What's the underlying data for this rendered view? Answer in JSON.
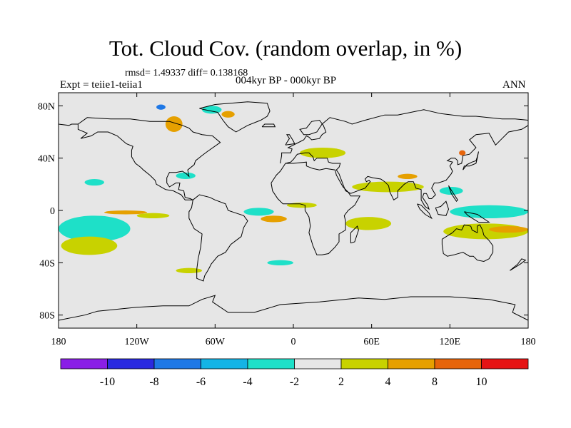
{
  "header": {
    "title": "Tot. Cloud Cov. (random overlap, in %)",
    "stats": "rmsd= 1.49337 diff= 0.138168",
    "experiment": "Expt = teiie1-teiia1",
    "period": "004kyr BP - 000kyr BP",
    "season": "ANN"
  },
  "chart_data": {
    "type": "heatmap",
    "title": "Tot. Cloud Cov. (random overlap, in %)",
    "projection": "cylindrical equidistant world map with coastlines",
    "xlim": [
      -180,
      180
    ],
    "ylim": [
      -90,
      90
    ],
    "x_ticks": [
      {
        "value": -180,
        "label": "180"
      },
      {
        "value": -120,
        "label": "120W"
      },
      {
        "value": -60,
        "label": "60W"
      },
      {
        "value": 0,
        "label": "0"
      },
      {
        "value": 60,
        "label": "60E"
      },
      {
        "value": 120,
        "label": "120E"
      },
      {
        "value": 180,
        "label": "180"
      }
    ],
    "y_ticks": [
      {
        "value": 80,
        "label": "80N"
      },
      {
        "value": 40,
        "label": "40N"
      },
      {
        "value": 0,
        "label": "0"
      },
      {
        "value": -40,
        "label": "40S"
      },
      {
        "value": -80,
        "label": "80S"
      }
    ],
    "background_color": "#e6e6e6",
    "colorbar": {
      "levels": [
        -10,
        -8,
        -6,
        -4,
        -2,
        2,
        4,
        8,
        10
      ],
      "level_labels": [
        "-10",
        "-8",
        "-6",
        "-4",
        "-2",
        "2",
        "4",
        "8",
        "10"
      ],
      "colors": [
        "#8a1ee6",
        "#2a2ae0",
        "#1e78e6",
        "#14b4e6",
        "#1ee0c8",
        "#e6e6e6",
        "#c8d200",
        "#e6a000",
        "#e6640a",
        "#e61414"
      ]
    },
    "anomaly_regions": [
      {
        "lon": [
          -168,
          -140
        ],
        "lat": [
          -22,
          -8
        ],
        "value": -5
      },
      {
        "lon": [
          -180,
          -125
        ],
        "lat": [
          -24,
          -4
        ],
        "value": -3
      },
      {
        "lon": [
          -178,
          -135
        ],
        "lat": [
          -34,
          -20
        ],
        "value": 3
      },
      {
        "lon": [
          -145,
          -112
        ],
        "lat": [
          -3,
          0
        ],
        "value": 5
      },
      {
        "lon": [
          -120,
          -95
        ],
        "lat": [
          -6,
          -2
        ],
        "value": 3
      },
      {
        "lon": [
          -105,
          -98
        ],
        "lat": [
          77,
          81
        ],
        "value": -7
      },
      {
        "lon": [
          -98,
          -85
        ],
        "lat": [
          60,
          72
        ],
        "value": 4
      },
      {
        "lon": [
          -70,
          -55
        ],
        "lat": [
          74,
          80
        ],
        "value": -3
      },
      {
        "lon": [
          -55,
          -45
        ],
        "lat": [
          71,
          76
        ],
        "value": 4
      },
      {
        "lon": [
          -160,
          -145
        ],
        "lat": [
          19,
          24
        ],
        "value": -3
      },
      {
        "lon": [
          -90,
          -75
        ],
        "lat": [
          24,
          29
        ],
        "value": -3
      },
      {
        "lon": [
          -38,
          -15
        ],
        "lat": [
          -4,
          2
        ],
        "value": -3
      },
      {
        "lon": [
          -25,
          -5
        ],
        "lat": [
          -9,
          -4
        ],
        "value": 5
      },
      {
        "lon": [
          -5,
          18
        ],
        "lat": [
          2,
          6
        ],
        "value": 3
      },
      {
        "lon": [
          40,
          75
        ],
        "lat": [
          -15,
          -5
        ],
        "value": 3
      },
      {
        "lon": [
          45,
          100
        ],
        "lat": [
          14,
          22
        ],
        "value": 3
      },
      {
        "lon": [
          80,
          95
        ],
        "lat": [
          24,
          28
        ],
        "value": 6
      },
      {
        "lon": [
          112,
          130
        ],
        "lat": [
          12,
          18
        ],
        "value": -3
      },
      {
        "lon": [
          120,
          180
        ],
        "lat": [
          -6,
          4
        ],
        "value": -3
      },
      {
        "lon": [
          115,
          180
        ],
        "lat": [
          -22,
          -10
        ],
        "value": 3
      },
      {
        "lon": [
          150,
          180
        ],
        "lat": [
          -17,
          -12
        ],
        "value": 6
      },
      {
        "lon": [
          127,
          132
        ],
        "lat": [
          42,
          46
        ],
        "value": 9
      },
      {
        "lon": [
          5,
          40
        ],
        "lat": [
          40,
          48
        ],
        "value": 3
      },
      {
        "lon": [
          -90,
          -70
        ],
        "lat": [
          -48,
          -44
        ],
        "value": 3
      },
      {
        "lon": [
          -20,
          0
        ],
        "lat": [
          -42,
          -38
        ],
        "value": -3
      }
    ]
  }
}
